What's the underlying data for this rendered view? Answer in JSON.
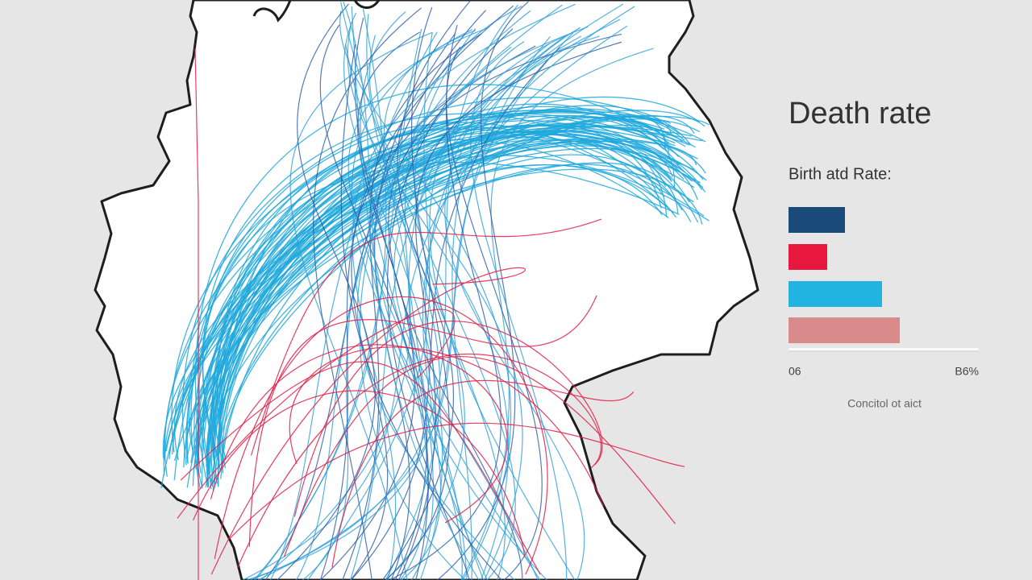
{
  "legend": {
    "title": "Death rate",
    "subtitle": "Birth atd Rate:",
    "axis_start": "06",
    "axis_end": "B6%",
    "caption": "Concitol ot aict"
  }
}
